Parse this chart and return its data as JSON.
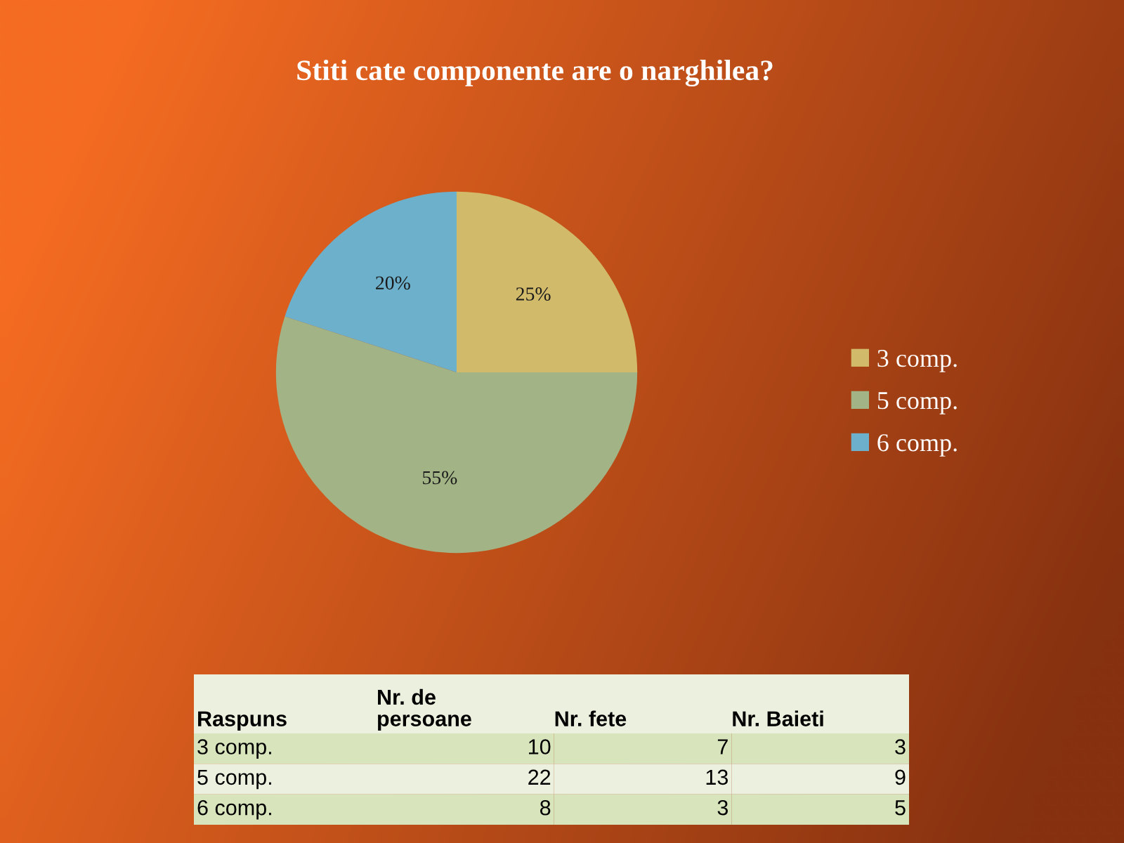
{
  "chart_data": [
    {
      "type": "pie",
      "title": "Stiti cate componente are o narghilea?",
      "categories": [
        "3 comp.",
        "5 comp.",
        "6 comp."
      ],
      "values": [
        25,
        55,
        20
      ],
      "colors": [
        "#d2ba6b",
        "#a2b486",
        "#6db0cb"
      ],
      "value_labels": [
        "25%",
        "55%",
        "20%"
      ],
      "legend": "right"
    },
    {
      "type": "other",
      "xlabel": "Raspuns",
      "categories": [
        "3 comp.",
        "5 comp.",
        "6 comp."
      ],
      "series": [
        {
          "name": "Nr. de\npersoane",
          "colors": [
            "#d8e4bc",
            "#ebf1de",
            "#d8e4bc"
          ],
          "values": [
            10,
            22,
            8
          ]
        },
        {
          "name": "Nr. fete",
          "colors": [
            "#d8e4bc",
            "#ebf1de",
            "#d8e4bc"
          ],
          "values": [
            7,
            13,
            3
          ]
        },
        {
          "name": "Nr. Baieti",
          "colors": [
            "#d8e4bc",
            "#ebf1de",
            "#d8e4bc"
          ],
          "values": [
            3,
            9,
            5
          ]
        }
      ],
      "data_labels": true
    }
  ]
}
